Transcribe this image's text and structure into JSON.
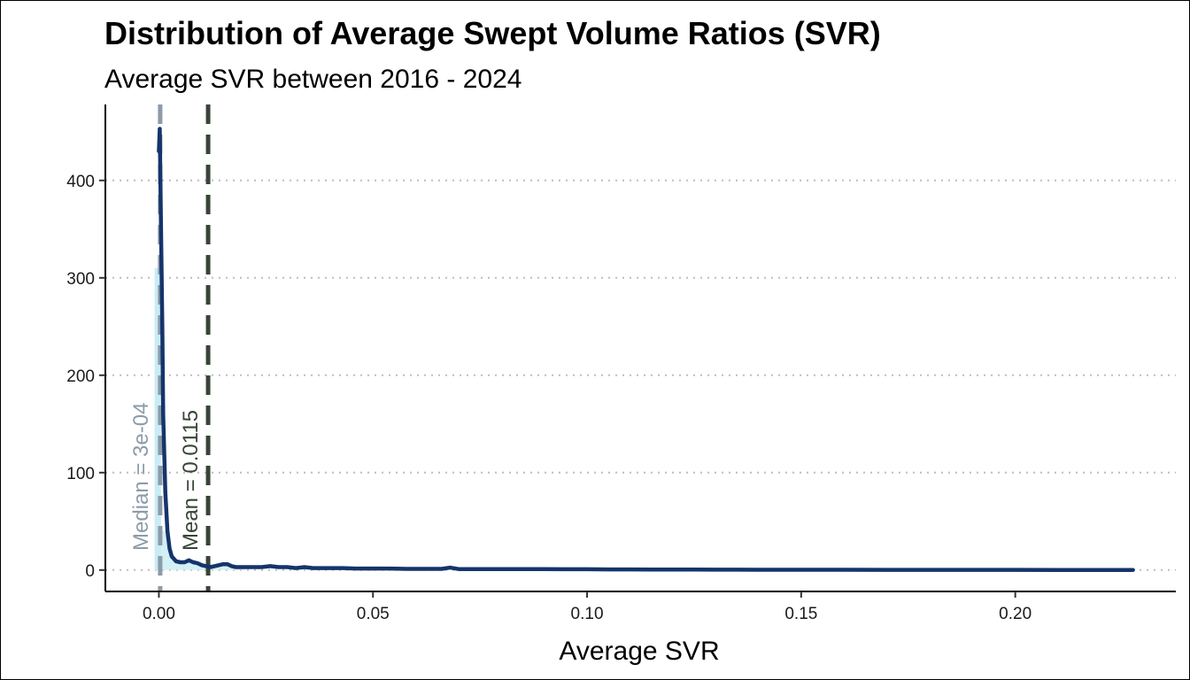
{
  "chart_data": {
    "type": "area",
    "title": "Distribution of Average Swept Volume Ratios (SVR)",
    "subtitle": "Average SVR between 2016 - 2024",
    "xlabel": "Average SVR",
    "ylabel": "",
    "xlim": [
      -0.0125,
      0.2375
    ],
    "ylim": [
      -22,
      478
    ],
    "x_ticks": [
      0.0,
      0.05,
      0.1,
      0.15,
      0.2
    ],
    "x_tick_labels": [
      "0.00",
      "0.05",
      "0.10",
      "0.15",
      "0.20"
    ],
    "y_ticks": [
      0,
      100,
      200,
      300,
      400
    ],
    "y_tick_labels": [
      "0",
      "100",
      "200",
      "300",
      "400"
    ],
    "grid": "horizontal-dotted",
    "colors": {
      "density_line": "#15346b",
      "density_fill": "#c9ecf5",
      "median_line": "#8d9ba8",
      "mean_line": "#374536",
      "grid": "#bdbdbd"
    },
    "series": [
      {
        "x": [
          0.0,
          0.0002,
          0.0005,
          0.0008,
          0.001,
          0.0015,
          0.002,
          0.0025,
          0.003,
          0.004,
          0.005,
          0.006,
          0.007,
          0.008,
          0.009,
          0.01,
          0.011,
          0.012,
          0.013,
          0.014,
          0.015,
          0.016,
          0.017,
          0.018,
          0.019,
          0.02,
          0.022,
          0.024,
          0.026,
          0.028,
          0.03,
          0.032,
          0.034,
          0.036,
          0.038,
          0.04,
          0.043,
          0.046,
          0.05,
          0.054,
          0.058,
          0.062,
          0.066,
          0.068,
          0.07,
          0.074,
          0.078,
          0.082,
          0.086,
          0.09,
          0.095,
          0.1,
          0.105,
          0.11,
          0.115,
          0.12,
          0.125,
          0.13,
          0.135,
          0.14,
          0.15,
          0.16,
          0.17,
          0.18,
          0.19,
          0.2,
          0.21,
          0.22,
          0.2275
        ],
        "y": [
          430,
          453,
          350,
          250,
          160,
          80,
          40,
          22,
          14,
          9,
          8,
          8,
          10,
          8,
          7,
          5,
          4,
          3,
          4,
          5,
          6,
          6,
          4,
          3,
          3,
          3,
          3,
          3,
          4,
          3,
          3,
          2,
          3,
          2,
          2,
          2,
          2,
          1.5,
          1.5,
          1.5,
          1.2,
          1.2,
          1.2,
          2.5,
          1.0,
          1.0,
          1.0,
          1.0,
          1.0,
          1.0,
          0.8,
          0.8,
          0.6,
          0.6,
          0.5,
          0.5,
          0.5,
          0.4,
          0.4,
          0.3,
          0.3,
          0.3,
          0.2,
          0.2,
          0.2,
          0.2,
          0.1,
          0.1,
          0.1
        ]
      }
    ],
    "fill_region": {
      "x_min": -0.001,
      "x_max": 0.0005,
      "y_top": 310
    },
    "median": {
      "value": 0.0003,
      "label": "Median =  3e-04"
    },
    "mean": {
      "value": 0.0115,
      "label": "Mean =  0.0115"
    }
  }
}
